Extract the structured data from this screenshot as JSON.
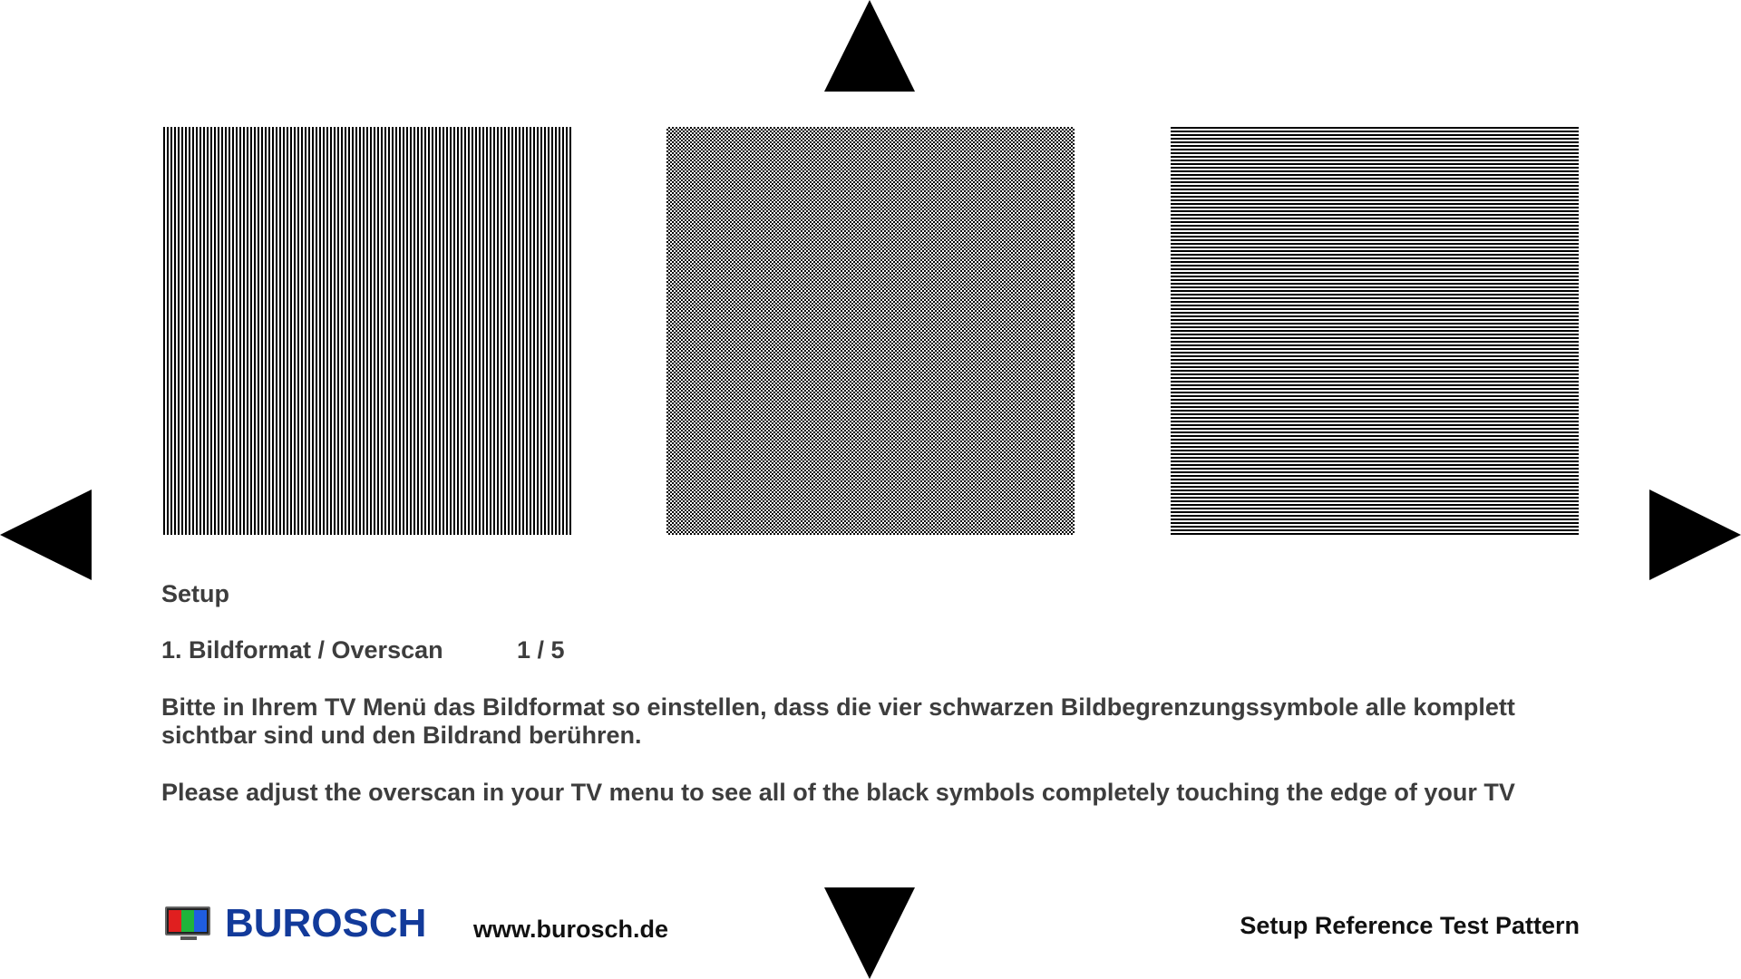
{
  "setup": {
    "heading": "Setup",
    "step_title": "1. Bildformat / Overscan",
    "step_counter": "1 / 5",
    "description_de": "Bitte in Ihrem TV Menü das Bildformat so einstellen, dass die vier schwarzen Bildbegrenzungssymbole alle komplett sichtbar sind und den Bildrand berühren.",
    "description_en": "Please adjust the overscan in your TV menu to see all of the black symbols completely touching the edge of your TV"
  },
  "footer": {
    "brand": "BUROSCH",
    "website": "www.burosch.de",
    "title": "Setup Reference Test Pattern"
  },
  "colors": {
    "brand_blue": "#123a9a",
    "text_gray": "#3d3d3d",
    "marker_black": "#000000"
  },
  "icons": {
    "logo": "tv-rgb-icon"
  }
}
